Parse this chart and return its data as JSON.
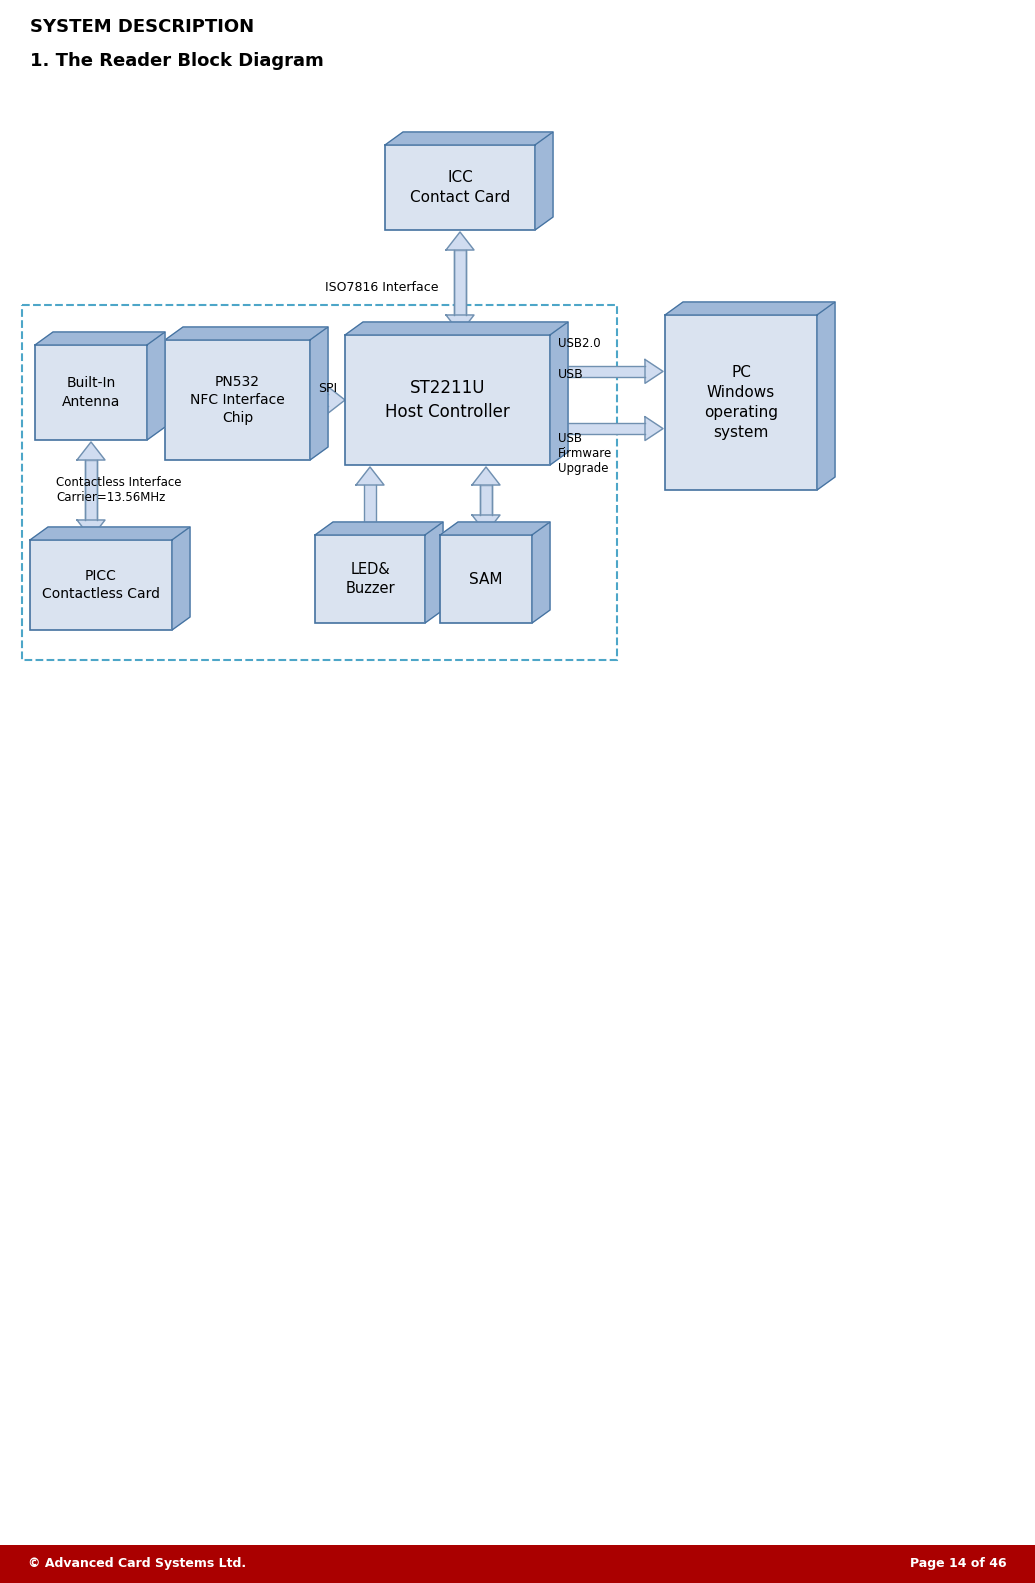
{
  "title_system": "SYSTEM DESCRIPTION",
  "title_diagram": "1. The Reader Block Diagram",
  "footer_left": "© Advanced Card Systems Ltd.",
  "footer_right": "Page 14 of 46",
  "footer_bg": "#AA0000",
  "footer_text_color": "#FFFFFF",
  "bg_color": "#FFFFFF",
  "box_fill": "#DAE3F0",
  "box_fill_dark": "#9FB8D8",
  "box_edge": "#4472A0",
  "dashed_rect_color": "#4DA6C8",
  "arrow_fill": "#D0DCF0",
  "arrow_edge": "#7090B0"
}
